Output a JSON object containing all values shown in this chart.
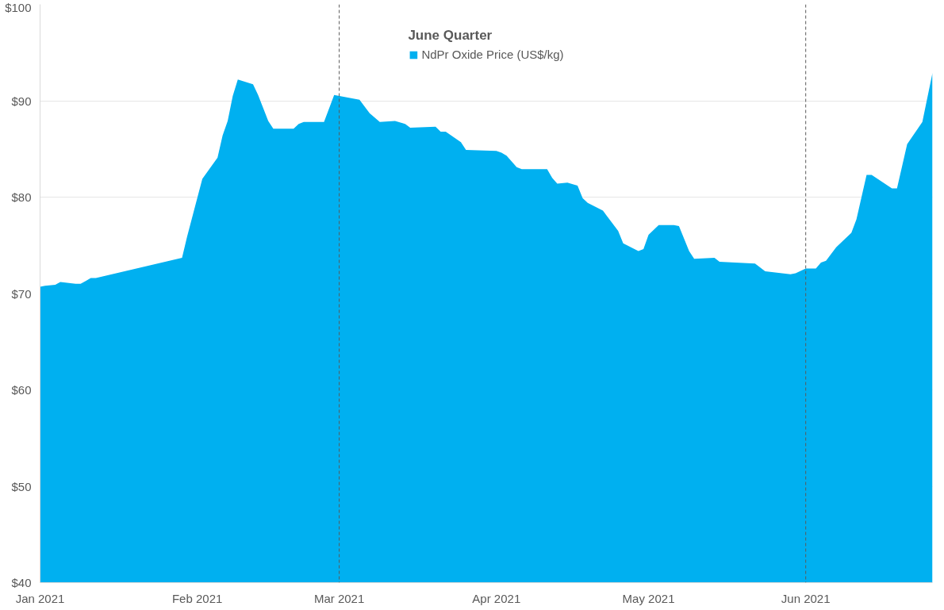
{
  "chart_data": {
    "type": "area",
    "legend_title": "June Quarter",
    "legend": "top",
    "grid": "y",
    "x": [
      "2021-01-01",
      "2021-01-02",
      "2021-01-04",
      "2021-01-05",
      "2021-01-08",
      "2021-01-09",
      "2021-01-10",
      "2021-01-11",
      "2021-01-12",
      "2021-01-29",
      "2021-01-30",
      "2021-02-02",
      "2021-02-05",
      "2021-02-06",
      "2021-02-07",
      "2021-02-08",
      "2021-02-09",
      "2021-02-12",
      "2021-02-13",
      "2021-02-15",
      "2021-02-16",
      "2021-02-20",
      "2021-02-21",
      "2021-02-22",
      "2021-02-26",
      "2021-02-28",
      "2021-03-05",
      "2021-03-07",
      "2021-03-09",
      "2021-03-12",
      "2021-03-14",
      "2021-03-15",
      "2021-03-20",
      "2021-03-21",
      "2021-03-22",
      "2021-03-25",
      "2021-03-26",
      "2021-04-01",
      "2021-04-02",
      "2021-04-03",
      "2021-04-05",
      "2021-04-06",
      "2021-04-11",
      "2021-04-12",
      "2021-04-13",
      "2021-04-15",
      "2021-04-17",
      "2021-04-18",
      "2021-04-19",
      "2021-04-22",
      "2021-04-25",
      "2021-04-26",
      "2021-04-29",
      "2021-04-30",
      "2021-05-01",
      "2021-05-03",
      "2021-05-06",
      "2021-05-07",
      "2021-05-09",
      "2021-05-10",
      "2021-05-14",
      "2021-05-15",
      "2021-05-22",
      "2021-05-24",
      "2021-05-29",
      "2021-05-30",
      "2021-06-01",
      "2021-06-03",
      "2021-06-04",
      "2021-06-05",
      "2021-06-07",
      "2021-06-10",
      "2021-06-11",
      "2021-06-13",
      "2021-06-14",
      "2021-06-18",
      "2021-06-19",
      "2021-06-21",
      "2021-06-24",
      "2021-06-26"
    ],
    "series": [
      {
        "name": "NdPr Oxide Price (US$/kg)",
        "color": "#00b0f0",
        "values": [
          70.7,
          70.8,
          70.9,
          71.2,
          71.0,
          71.0,
          71.3,
          71.6,
          71.6,
          73.7,
          75.9,
          81.9,
          84.1,
          86.4,
          87.9,
          90.5,
          92.2,
          91.7,
          90.6,
          87.9,
          87.1,
          87.1,
          87.6,
          87.8,
          87.8,
          90.6,
          90.1,
          88.7,
          87.8,
          87.9,
          87.6,
          87.2,
          87.3,
          86.8,
          86.8,
          85.7,
          84.9,
          84.8,
          84.6,
          84.3,
          83.1,
          82.9,
          82.9,
          82.0,
          81.4,
          81.5,
          81.2,
          79.9,
          79.4,
          78.6,
          76.5,
          75.2,
          74.4,
          74.6,
          76.1,
          77.1,
          77.1,
          77.0,
          74.4,
          73.6,
          73.7,
          73.3,
          73.1,
          72.3,
          72.0,
          72.1,
          72.6,
          72.6,
          73.2,
          73.4,
          74.8,
          76.3,
          77.7,
          82.3,
          82.3,
          80.9,
          80.9,
          85.5,
          87.8,
          92.9
        ]
      }
    ],
    "xlim": [
      "2021-01-01",
      "2021-06-26"
    ],
    "xticks": [
      {
        "value": "2021-01-01",
        "label": "Jan 2021"
      },
      {
        "value": "2021-02-01",
        "label": "Feb 2021"
      },
      {
        "value": "2021-03-01",
        "label": "Mar 2021"
      },
      {
        "value": "2021-04-01",
        "label": "Apr 2021"
      },
      {
        "value": "2021-05-01",
        "label": "May 2021"
      },
      {
        "value": "2021-06-01",
        "label": "Jun 2021"
      }
    ],
    "ylim": [
      40,
      100
    ],
    "yticks": [
      {
        "value": 40,
        "label": "$40"
      },
      {
        "value": 50,
        "label": "$50"
      },
      {
        "value": 60,
        "label": "$60"
      },
      {
        "value": 70,
        "label": "$70"
      },
      {
        "value": 80,
        "label": "$80"
      },
      {
        "value": 90,
        "label": "$90"
      },
      {
        "value": 100,
        "label": "$100"
      }
    ],
    "ref_lines": [
      {
        "axis": "x",
        "value": "2021-03-01",
        "color": "#595959",
        "line_style": "dashed"
      },
      {
        "axis": "x",
        "value": "2021-06-01",
        "color": "#595959",
        "line_style": "dashed"
      }
    ]
  }
}
